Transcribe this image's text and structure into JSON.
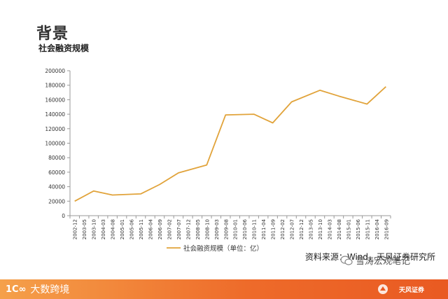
{
  "header": {
    "title": "背景",
    "subtitle": "社会融资规模"
  },
  "source_note": "资料来源：Wind，天风证券研究所",
  "footer": {
    "brand_logo_text": "1C∞",
    "brand_name": "大数跨境"
  },
  "watermark": {
    "account_name": "雪涛宏观笔记",
    "firm_name": "天风证券"
  },
  "colors": {
    "line": "#E1A33A",
    "axis": "#999999",
    "footer_accent": "#EE6B2A"
  },
  "chart_data": {
    "type": "line",
    "title": "",
    "xlabel": "",
    "ylabel": "",
    "ylim": [
      0,
      200000
    ],
    "yticks": [
      0,
      20000,
      40000,
      60000,
      80000,
      100000,
      120000,
      140000,
      160000,
      180000,
      200000
    ],
    "x": [
      "2002-12",
      "2003-05",
      "2003-10",
      "2004-03",
      "2004-08",
      "2005-01",
      "2005-06",
      "2005-11",
      "2006-04",
      "2006-09",
      "2007-02",
      "2007-07",
      "2007-12",
      "2008-05",
      "2008-10",
      "2009-03",
      "2009-08",
      "2010-01",
      "2010-06",
      "2010-11",
      "2011-04",
      "2011-09",
      "2012-02",
      "2012-07",
      "2012-12",
      "2013-05",
      "2013-10",
      "2014-03",
      "2014-08",
      "2015-01",
      "2015-06",
      "2015-11",
      "2016-04",
      "2016-09"
    ],
    "series": [
      {
        "name": "社会融资规模（单位：亿）",
        "points": [
          {
            "x": "2002-12",
            "y": 20000
          },
          {
            "x": "2003-10",
            "y": 34000
          },
          {
            "x": "2004-08",
            "y": 28500
          },
          {
            "x": "2005-11",
            "y": 30000
          },
          {
            "x": "2006-09",
            "y": 43000
          },
          {
            "x": "2007-07",
            "y": 59000
          },
          {
            "x": "2008-10",
            "y": 70000
          },
          {
            "x": "2009-08",
            "y": 139000
          },
          {
            "x": "2010-11",
            "y": 140000
          },
          {
            "x": "2011-09",
            "y": 128000
          },
          {
            "x": "2012-07",
            "y": 157000
          },
          {
            "x": "2013-10",
            "y": 173000
          },
          {
            "x": "2014-08",
            "y": 165000
          },
          {
            "x": "2015-11",
            "y": 154000
          },
          {
            "x": "2016-09",
            "y": 178000
          }
        ]
      }
    ],
    "legend": "bottom",
    "grid": false
  }
}
